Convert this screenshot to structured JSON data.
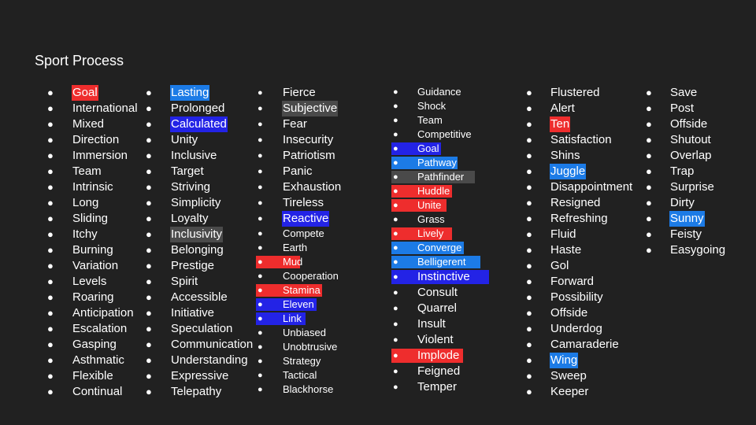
{
  "title": "Sport Process",
  "columns": [
    {
      "size": "big",
      "items": [
        {
          "text": "Goal",
          "hl": "red"
        },
        {
          "text": "International"
        },
        {
          "text": "Mixed"
        },
        {
          "text": "Direction"
        },
        {
          "text": "Immersion"
        },
        {
          "text": "Team"
        },
        {
          "text": "Intrinsic"
        },
        {
          "text": "Long"
        },
        {
          "text": "Sliding"
        },
        {
          "text": "Itchy"
        },
        {
          "text": "Burning"
        },
        {
          "text": "Variation"
        },
        {
          "text": "Levels"
        },
        {
          "text": "Roaring"
        },
        {
          "text": "Anticipation"
        },
        {
          "text": "Escalation"
        },
        {
          "text": "Gasping"
        },
        {
          "text": "Asthmatic"
        },
        {
          "text": "Flexible"
        },
        {
          "text": "Continual"
        }
      ]
    },
    {
      "size": "big",
      "items": [
        {
          "text": "Lasting",
          "hl": "lblue"
        },
        {
          "text": "Prolonged"
        },
        {
          "text": "Calculated",
          "hl": "blue"
        },
        {
          "text": "Unity"
        },
        {
          "text": "Inclusive"
        },
        {
          "text": "Target"
        },
        {
          "text": "Striving"
        },
        {
          "text": "Simplicity"
        },
        {
          "text": "Loyalty"
        },
        {
          "text": "Inclusivity",
          "hl": "gray"
        },
        {
          "text": "Belonging"
        },
        {
          "text": "Prestige"
        },
        {
          "text": "Spirit"
        },
        {
          "text": "Accessible"
        },
        {
          "text": "Initiative"
        },
        {
          "text": "Speculation"
        },
        {
          "text": "Communication"
        },
        {
          "text": "Understanding"
        },
        {
          "text": "Expressive"
        },
        {
          "text": "Telepathy"
        }
      ]
    },
    {
      "size": "mixed",
      "items": [
        {
          "text": "Fierce"
        },
        {
          "text": "Subjective",
          "hl": "gray"
        },
        {
          "text": "Fear"
        },
        {
          "text": "Insecurity"
        },
        {
          "text": "Patriotism"
        },
        {
          "text": "Panic"
        },
        {
          "text": "Exhaustion"
        },
        {
          "text": "Tireless"
        },
        {
          "text": "Reactive",
          "hl": "blue"
        },
        {
          "text": "Compete",
          "small": true
        },
        {
          "text": "Earth",
          "small": true
        },
        {
          "text": "Mud",
          "hl": "red",
          "small": true,
          "full": true
        },
        {
          "text": "Cooperation",
          "small": true
        },
        {
          "text": "Stamina",
          "hl": "red",
          "small": true,
          "full": true
        },
        {
          "text": "Eleven",
          "hl": "blue",
          "small": true,
          "full": true
        },
        {
          "text": "Link",
          "hl": "blue",
          "small": true,
          "full": true
        },
        {
          "text": "Unbiased",
          "small": true
        },
        {
          "text": "Unobtrusive",
          "small": true
        },
        {
          "text": "Strategy",
          "small": true
        },
        {
          "text": "Tactical",
          "small": true
        },
        {
          "text": "Blackhorse",
          "small": true
        }
      ]
    },
    {
      "size": "mixed",
      "items": [
        {
          "text": "Guidance",
          "small": true
        },
        {
          "text": "Shock",
          "small": true
        },
        {
          "text": "Team",
          "small": true
        },
        {
          "text": "Competitive",
          "small": true
        },
        {
          "text": "Goal",
          "hl": "blue",
          "small": true,
          "full": true
        },
        {
          "text": "Pathway",
          "hl": "lblue",
          "small": true,
          "full": true
        },
        {
          "text": "Pathfinder",
          "hl": "gray",
          "small": true,
          "full": true
        },
        {
          "text": "Huddle",
          "hl": "red",
          "small": true,
          "full": true
        },
        {
          "text": "Unite",
          "hl": "red",
          "small": true,
          "full": true
        },
        {
          "text": "Grass",
          "small": true
        },
        {
          "text": "Lively",
          "hl": "red",
          "small": true,
          "full": true
        },
        {
          "text": "Converge",
          "hl": "lblue",
          "small": true,
          "full": true
        },
        {
          "text": "Belligerent",
          "hl": "lblue",
          "small": true,
          "full": true
        },
        {
          "text": "Instinctive",
          "hl": "blue",
          "full": true
        },
        {
          "text": "Consult"
        },
        {
          "text": "Quarrel"
        },
        {
          "text": "Insult"
        },
        {
          "text": "Violent"
        },
        {
          "text": "Implode",
          "hl": "red",
          "full": true
        },
        {
          "text": "Feigned"
        },
        {
          "text": "Temper"
        }
      ]
    },
    {
      "size": "big",
      "items": [
        {
          "text": "Flustered"
        },
        {
          "text": "Alert"
        },
        {
          "text": "Ten",
          "hl": "red"
        },
        {
          "text": "Satisfaction"
        },
        {
          "text": "Shins"
        },
        {
          "text": "Juggle",
          "hl": "lblue"
        },
        {
          "text": "Disappointment"
        },
        {
          "text": "Resigned"
        },
        {
          "text": "Refreshing"
        },
        {
          "text": "Fluid"
        },
        {
          "text": "Haste"
        },
        {
          "text": "Gol"
        },
        {
          "text": "Forward"
        },
        {
          "text": "Possibility"
        },
        {
          "text": "Offside"
        },
        {
          "text": "Underdog"
        },
        {
          "text": "Camaraderie"
        },
        {
          "text": "Wing",
          "hl": "lblue"
        },
        {
          "text": "Sweep"
        },
        {
          "text": "Keeper"
        }
      ]
    },
    {
      "size": "big",
      "items": [
        {
          "text": "Save"
        },
        {
          "text": "Post"
        },
        {
          "text": "Offside"
        },
        {
          "text": "Shutout"
        },
        {
          "text": "Overlap"
        },
        {
          "text": "Trap"
        },
        {
          "text": "Surprise"
        },
        {
          "text": "Dirty"
        },
        {
          "text": "Sunny",
          "hl": "lblue"
        },
        {
          "text": "Feisty"
        },
        {
          "text": "Easygoing"
        }
      ]
    }
  ],
  "bullet": "●",
  "colors": {
    "background": "#212121",
    "red": "#ee2d2d",
    "blue": "#2323e6",
    "light_blue": "#1c7be6",
    "gray": "#4a4a4a"
  }
}
